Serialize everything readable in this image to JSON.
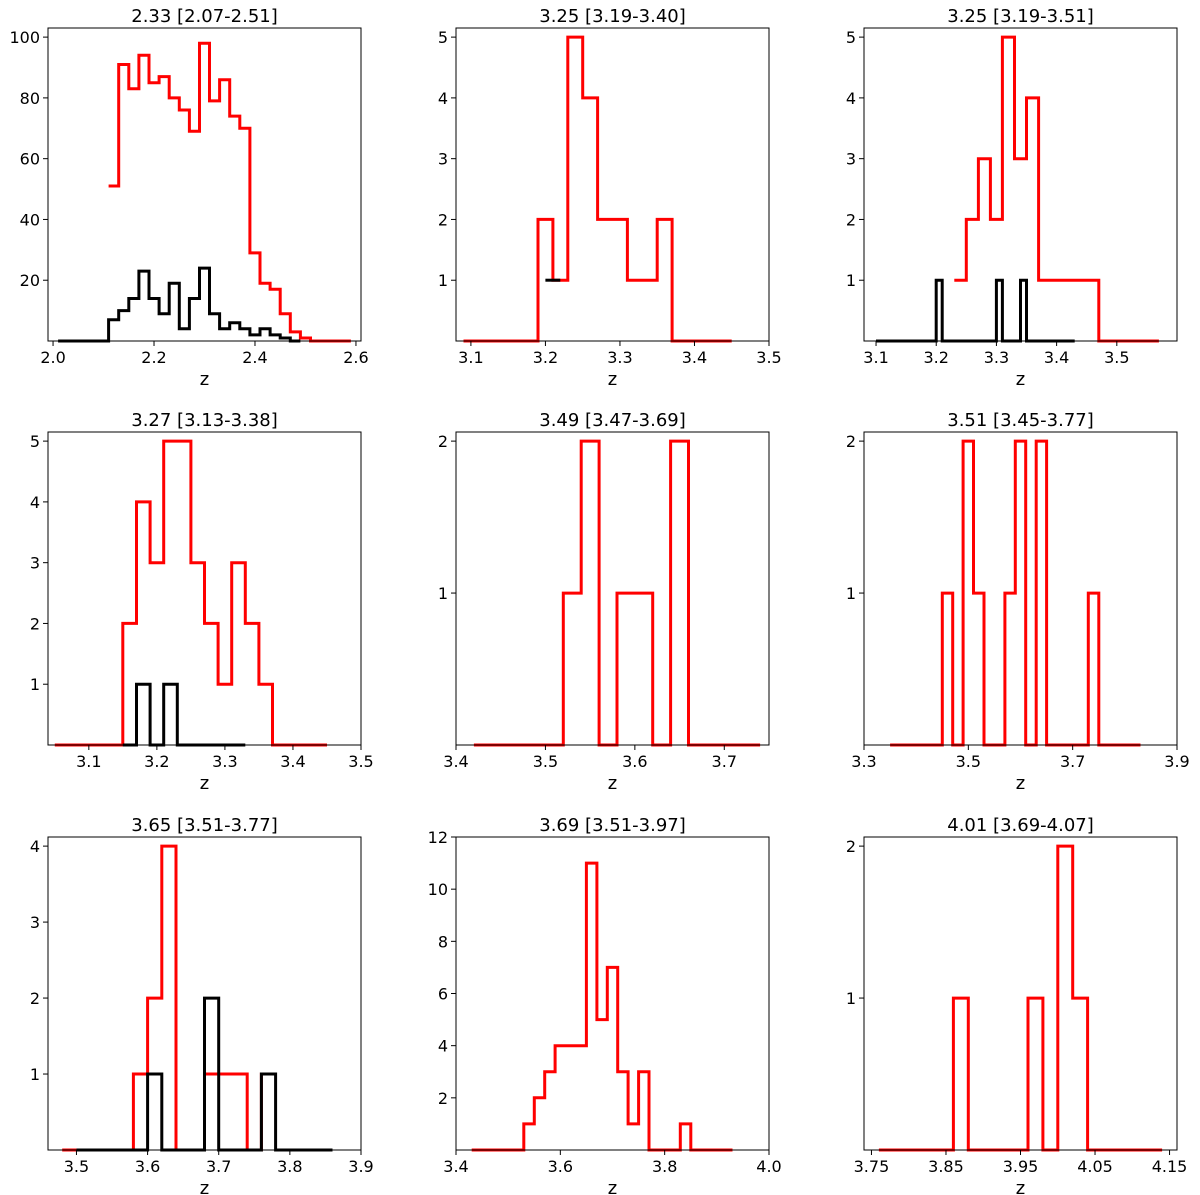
{
  "chart_data": [
    {
      "type": "histogram-step",
      "title": "2.33 [2.07-2.51]",
      "xlabel": "z",
      "ylabel": "",
      "xlim": [
        1.99,
        2.61
      ],
      "ylim": [
        0,
        103
      ],
      "xticks": [
        {
          "v": 2.0,
          "label": "2.0"
        },
        {
          "v": 2.2,
          "label": "2.2"
        },
        {
          "v": 2.4,
          "label": "2.4"
        },
        {
          "v": 2.6,
          "label": "2.6"
        }
      ],
      "yticks": [
        {
          "v": 20,
          "label": "20"
        },
        {
          "v": 40,
          "label": "40"
        },
        {
          "v": 60,
          "label": "60"
        },
        {
          "v": 80,
          "label": "80"
        },
        {
          "v": 100,
          "label": "100"
        }
      ],
      "series": [
        {
          "color": "#ff0000",
          "x": [
            2.11,
            2.13,
            2.15,
            2.17,
            2.19,
            2.21,
            2.23,
            2.25,
            2.27,
            2.29,
            2.31,
            2.33,
            2.35,
            2.37,
            2.39,
            2.41,
            2.43,
            2.45,
            2.47,
            2.49,
            2.51,
            2.59
          ],
          "y": [
            51,
            91,
            83,
            94,
            85,
            87,
            80,
            76,
            69,
            98,
            79,
            86,
            74,
            70,
            29,
            19,
            17,
            9,
            3,
            1,
            0
          ]
        },
        {
          "color": "#000000",
          "x": [
            2.01,
            2.11,
            2.13,
            2.15,
            2.17,
            2.19,
            2.21,
            2.23,
            2.25,
            2.27,
            2.29,
            2.31,
            2.33,
            2.35,
            2.37,
            2.39,
            2.41,
            2.43,
            2.45,
            2.47,
            2.49
          ],
          "y": [
            0,
            7,
            10,
            14,
            23,
            14,
            9,
            19,
            4,
            14,
            24,
            9,
            4,
            6,
            4,
            2,
            4,
            2,
            1,
            0
          ]
        }
      ]
    },
    {
      "type": "histogram-step",
      "title": "3.25 [3.19-3.40]",
      "xlabel": "z",
      "ylabel": "",
      "xlim": [
        3.08,
        3.5
      ],
      "ylim": [
        0,
        5.15
      ],
      "xticks": [
        {
          "v": 3.1,
          "label": "3.1"
        },
        {
          "v": 3.2,
          "label": "3.2"
        },
        {
          "v": 3.3,
          "label": "3.3"
        },
        {
          "v": 3.4,
          "label": "3.4"
        },
        {
          "v": 3.5,
          "label": "3.5"
        }
      ],
      "yticks": [
        {
          "v": 1,
          "label": "1"
        },
        {
          "v": 2,
          "label": "2"
        },
        {
          "v": 3,
          "label": "3"
        },
        {
          "v": 4,
          "label": "4"
        },
        {
          "v": 5,
          "label": "5"
        }
      ],
      "series": [
        {
          "color": "#ff0000",
          "x": [
            3.09,
            3.19,
            3.21,
            3.23,
            3.25,
            3.27,
            3.29,
            3.31,
            3.33,
            3.35,
            3.37,
            3.45
          ],
          "y": [
            0,
            2,
            1,
            5,
            4,
            2,
            2,
            1,
            1,
            2,
            0
          ]
        },
        {
          "color": "#000000",
          "x": [
            3.2,
            3.21,
            3.22
          ],
          "y": [
            1,
            1
          ]
        }
      ]
    },
    {
      "type": "histogram-step",
      "title": "3.25 [3.19-3.51]",
      "xlabel": "z",
      "ylabel": "",
      "xlim": [
        3.08,
        3.6
      ],
      "ylim": [
        0,
        5.15
      ],
      "xticks": [
        {
          "v": 3.1,
          "label": "3.1"
        },
        {
          "v": 3.2,
          "label": "3.2"
        },
        {
          "v": 3.3,
          "label": "3.3"
        },
        {
          "v": 3.4,
          "label": "3.4"
        },
        {
          "v": 3.5,
          "label": "3.5"
        }
      ],
      "yticks": [
        {
          "v": 1,
          "label": "1"
        },
        {
          "v": 2,
          "label": "2"
        },
        {
          "v": 3,
          "label": "3"
        },
        {
          "v": 4,
          "label": "4"
        },
        {
          "v": 5,
          "label": "5"
        }
      ],
      "series": [
        {
          "color": "#ff0000",
          "x": [
            3.23,
            3.25,
            3.27,
            3.29,
            3.31,
            3.33,
            3.35,
            3.37,
            3.47,
            3.57
          ],
          "y": [
            1,
            2,
            3,
            2,
            5,
            3,
            4,
            1,
            0
          ]
        },
        {
          "color": "#000000",
          "x": [
            3.1,
            3.2,
            3.21,
            3.3,
            3.31,
            3.34,
            3.35,
            3.43
          ],
          "y": [
            0,
            1,
            0,
            1,
            0,
            1,
            0
          ]
        }
      ]
    },
    {
      "type": "histogram-step",
      "title": "3.27 [3.13-3.38]",
      "xlabel": "z",
      "ylabel": "",
      "xlim": [
        3.04,
        3.5
      ],
      "ylim": [
        0,
        5.15
      ],
      "xticks": [
        {
          "v": 3.1,
          "label": "3.1"
        },
        {
          "v": 3.2,
          "label": "3.2"
        },
        {
          "v": 3.3,
          "label": "3.3"
        },
        {
          "v": 3.4,
          "label": "3.4"
        },
        {
          "v": 3.5,
          "label": "3.5"
        }
      ],
      "yticks": [
        {
          "v": 1,
          "label": "1"
        },
        {
          "v": 2,
          "label": "2"
        },
        {
          "v": 3,
          "label": "3"
        },
        {
          "v": 4,
          "label": "4"
        },
        {
          "v": 5,
          "label": "5"
        }
      ],
      "series": [
        {
          "color": "#ff0000",
          "x": [
            3.05,
            3.15,
            3.17,
            3.19,
            3.21,
            3.23,
            3.25,
            3.27,
            3.29,
            3.31,
            3.33,
            3.35,
            3.37,
            3.45
          ],
          "y": [
            0,
            2,
            4,
            3,
            5,
            5,
            3,
            2,
            1,
            3,
            2,
            1,
            0
          ]
        },
        {
          "color": "#000000",
          "x": [
            3.15,
            3.17,
            3.19,
            3.21,
            3.23,
            3.33
          ],
          "y": [
            0,
            1,
            0,
            1,
            0
          ]
        }
      ]
    },
    {
      "type": "histogram-step",
      "title": "3.49 [3.47-3.69]",
      "xlabel": "z",
      "ylabel": "",
      "xlim": [
        3.4,
        3.75
      ],
      "ylim": [
        0,
        2.06
      ],
      "xticks": [
        {
          "v": 3.4,
          "label": "3.4"
        },
        {
          "v": 3.5,
          "label": "3.5"
        },
        {
          "v": 3.6,
          "label": "3.6"
        },
        {
          "v": 3.7,
          "label": "3.7"
        }
      ],
      "yticks": [
        {
          "v": 1,
          "label": "1"
        },
        {
          "v": 2,
          "label": "2"
        }
      ],
      "series": [
        {
          "color": "#ff0000",
          "x": [
            3.42,
            3.52,
            3.54,
            3.56,
            3.58,
            3.6,
            3.62,
            3.64,
            3.66,
            3.74
          ],
          "y": [
            0,
            1,
            2,
            0,
            1,
            1,
            0,
            2,
            0
          ]
        }
      ]
    },
    {
      "type": "histogram-step",
      "title": "3.51 [3.45-3.77]",
      "xlabel": "z",
      "ylabel": "",
      "xlim": [
        3.3,
        3.9
      ],
      "ylim": [
        0,
        2.06
      ],
      "xticks": [
        {
          "v": 3.3,
          "label": "3.3"
        },
        {
          "v": 3.5,
          "label": "3.5"
        },
        {
          "v": 3.7,
          "label": "3.7"
        },
        {
          "v": 3.9,
          "label": "3.9"
        }
      ],
      "yticks": [
        {
          "v": 1,
          "label": "1"
        },
        {
          "v": 2,
          "label": "2"
        }
      ],
      "series": [
        {
          "color": "#ff0000",
          "x": [
            3.35,
            3.45,
            3.47,
            3.49,
            3.51,
            3.53,
            3.55,
            3.57,
            3.59,
            3.61,
            3.63,
            3.65,
            3.67,
            3.69,
            3.71,
            3.73,
            3.75,
            3.83
          ],
          "y": [
            0,
            1,
            0,
            2,
            1,
            0,
            0,
            1,
            2,
            0,
            2,
            0,
            0,
            0,
            0,
            1,
            0
          ]
        }
      ]
    },
    {
      "type": "histogram-step",
      "title": "3.65 [3.51-3.77]",
      "xlabel": "z",
      "ylabel": "",
      "xlim": [
        3.46,
        3.9
      ],
      "ylim": [
        0,
        4.12
      ],
      "xticks": [
        {
          "v": 3.5,
          "label": "3.5"
        },
        {
          "v": 3.6,
          "label": "3.6"
        },
        {
          "v": 3.7,
          "label": "3.7"
        },
        {
          "v": 3.8,
          "label": "3.8"
        },
        {
          "v": 3.9,
          "label": "3.9"
        }
      ],
      "yticks": [
        {
          "v": 1,
          "label": "1"
        },
        {
          "v": 2,
          "label": "2"
        },
        {
          "v": 3,
          "label": "3"
        },
        {
          "v": 4,
          "label": "4"
        }
      ],
      "series": [
        {
          "color": "#ff0000",
          "x": [
            3.48,
            3.58,
            3.6,
            3.62,
            3.64,
            3.68,
            3.74,
            3.76,
            3.78
          ],
          "y": [
            0,
            1,
            2,
            4,
            0,
            1,
            0,
            1
          ]
        },
        {
          "color": "#000000",
          "x": [
            3.5,
            3.6,
            3.62,
            3.68,
            3.7,
            3.76,
            3.78,
            3.86
          ],
          "y": [
            0,
            1,
            0,
            2,
            0,
            1,
            0
          ]
        }
      ]
    },
    {
      "type": "histogram-step",
      "title": "3.69 [3.51-3.97]",
      "xlabel": "z",
      "ylabel": "",
      "xlim": [
        3.4,
        4.0
      ],
      "ylim": [
        0,
        12
      ],
      "xticks": [
        {
          "v": 3.4,
          "label": "3.4"
        },
        {
          "v": 3.6,
          "label": "3.6"
        },
        {
          "v": 3.8,
          "label": "3.8"
        },
        {
          "v": 4.0,
          "label": "4.0"
        }
      ],
      "yticks": [
        {
          "v": 2,
          "label": "2"
        },
        {
          "v": 4,
          "label": "4"
        },
        {
          "v": 6,
          "label": "6"
        },
        {
          "v": 8,
          "label": "8"
        },
        {
          "v": 10,
          "label": "10"
        },
        {
          "v": 12,
          "label": "12"
        }
      ],
      "series": [
        {
          "color": "#ff0000",
          "x": [
            3.43,
            3.53,
            3.55,
            3.57,
            3.59,
            3.61,
            3.63,
            3.65,
            3.67,
            3.69,
            3.71,
            3.73,
            3.75,
            3.77,
            3.79,
            3.81,
            3.83,
            3.85,
            3.93
          ],
          "y": [
            0,
            1,
            2,
            3,
            4,
            4,
            4,
            11,
            5,
            7,
            3,
            1,
            3,
            0,
            0,
            0,
            1,
            0
          ]
        }
      ]
    },
    {
      "type": "histogram-step",
      "title": "4.01 [3.69-4.07]",
      "xlabel": "z",
      "ylabel": "",
      "xlim": [
        3.74,
        4.16
      ],
      "ylim": [
        0,
        2.06
      ],
      "xticks": [
        {
          "v": 3.75,
          "label": "3.75"
        },
        {
          "v": 3.85,
          "label": "3.85"
        },
        {
          "v": 3.95,
          "label": "3.95"
        },
        {
          "v": 4.05,
          "label": "4.05"
        },
        {
          "v": 4.15,
          "label": "4.15"
        }
      ],
      "yticks": [
        {
          "v": 1,
          "label": "1"
        },
        {
          "v": 2,
          "label": "2"
        }
      ],
      "series": [
        {
          "color": "#ff0000",
          "x": [
            3.76,
            3.86,
            3.88,
            3.9,
            3.92,
            3.94,
            3.96,
            3.98,
            4.0,
            4.02,
            4.04,
            4.14
          ],
          "y": [
            0,
            1,
            0,
            0,
            0,
            0,
            1,
            0,
            2,
            1,
            0
          ]
        }
      ]
    }
  ]
}
